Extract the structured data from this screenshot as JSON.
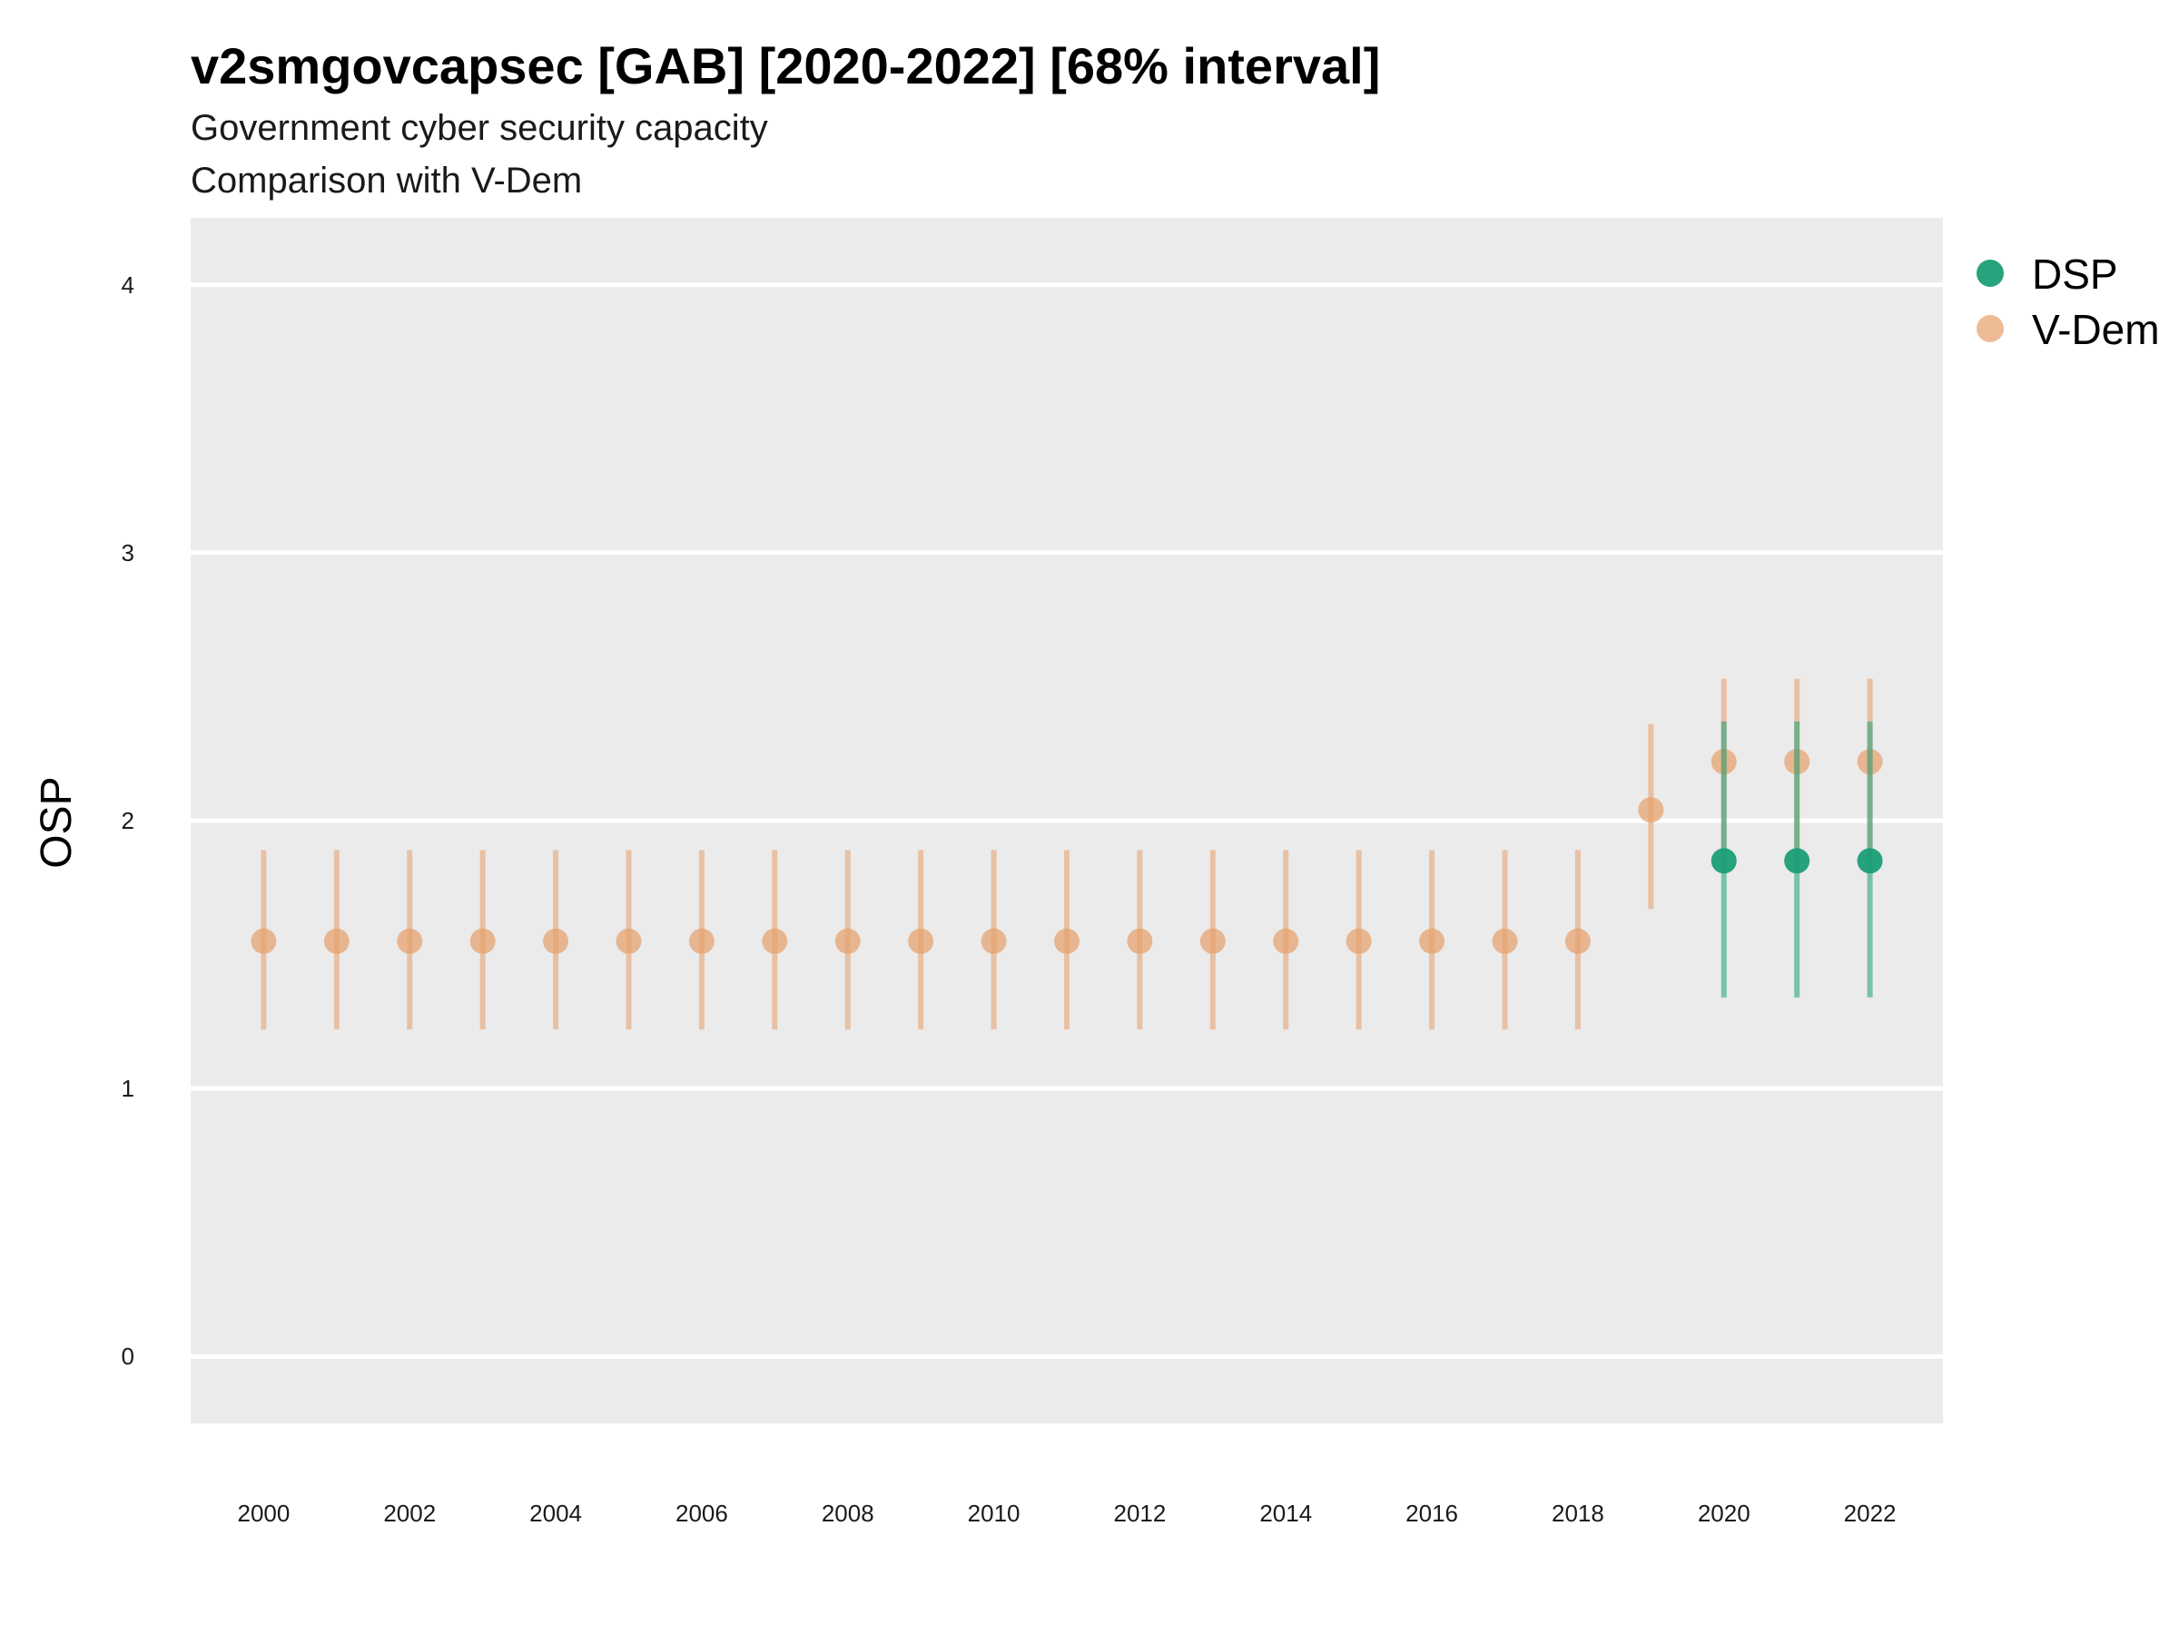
{
  "chart_data": {
    "type": "scatter",
    "title": "v2smgovcapsec [GAB] [2020-2022] [68% interval]",
    "subtitle_lines": [
      "Government cyber security capacity",
      "Comparison with V-Dem"
    ],
    "xlabel": "",
    "ylabel": "OSP",
    "ylim": [
      -0.25,
      4.25
    ],
    "yticks": [
      0,
      1,
      2,
      3,
      4
    ],
    "xlim": [
      1999,
      2023
    ],
    "xticks": [
      2000,
      2002,
      2004,
      2006,
      2008,
      2010,
      2012,
      2014,
      2016,
      2018,
      2020,
      2022
    ],
    "grid": true,
    "legend_position": "right",
    "legend": [
      "DSP",
      "V-Dem"
    ],
    "series": [
      {
        "name": "V-Dem",
        "color": "#E69F6A",
        "x": [
          2000,
          2001,
          2002,
          2003,
          2004,
          2005,
          2006,
          2007,
          2008,
          2009,
          2010,
          2011,
          2012,
          2013,
          2014,
          2015,
          2016,
          2017,
          2018,
          2019,
          2020,
          2021,
          2022
        ],
        "y": [
          1.55,
          1.55,
          1.55,
          1.55,
          1.55,
          1.55,
          1.55,
          1.55,
          1.55,
          1.55,
          1.55,
          1.55,
          1.55,
          1.55,
          1.55,
          1.55,
          1.55,
          1.55,
          1.55,
          2.04,
          2.22,
          2.22,
          2.22
        ],
        "lower": [
          1.22,
          1.22,
          1.22,
          1.22,
          1.22,
          1.22,
          1.22,
          1.22,
          1.22,
          1.22,
          1.22,
          1.22,
          1.22,
          1.22,
          1.22,
          1.22,
          1.22,
          1.22,
          1.22,
          1.67,
          1.87,
          1.87,
          1.87
        ],
        "upper": [
          1.89,
          1.89,
          1.89,
          1.89,
          1.89,
          1.89,
          1.89,
          1.89,
          1.89,
          1.89,
          1.89,
          1.89,
          1.89,
          1.89,
          1.89,
          1.89,
          1.89,
          1.89,
          1.89,
          2.36,
          2.53,
          2.53,
          2.53
        ]
      },
      {
        "name": "DSP",
        "color": "#1B9E77",
        "x": [
          2020,
          2021,
          2022
        ],
        "y": [
          1.85,
          1.85,
          1.85
        ],
        "lower": [
          1.34,
          1.34,
          1.34
        ],
        "upper": [
          2.37,
          2.37,
          2.37
        ]
      }
    ]
  }
}
